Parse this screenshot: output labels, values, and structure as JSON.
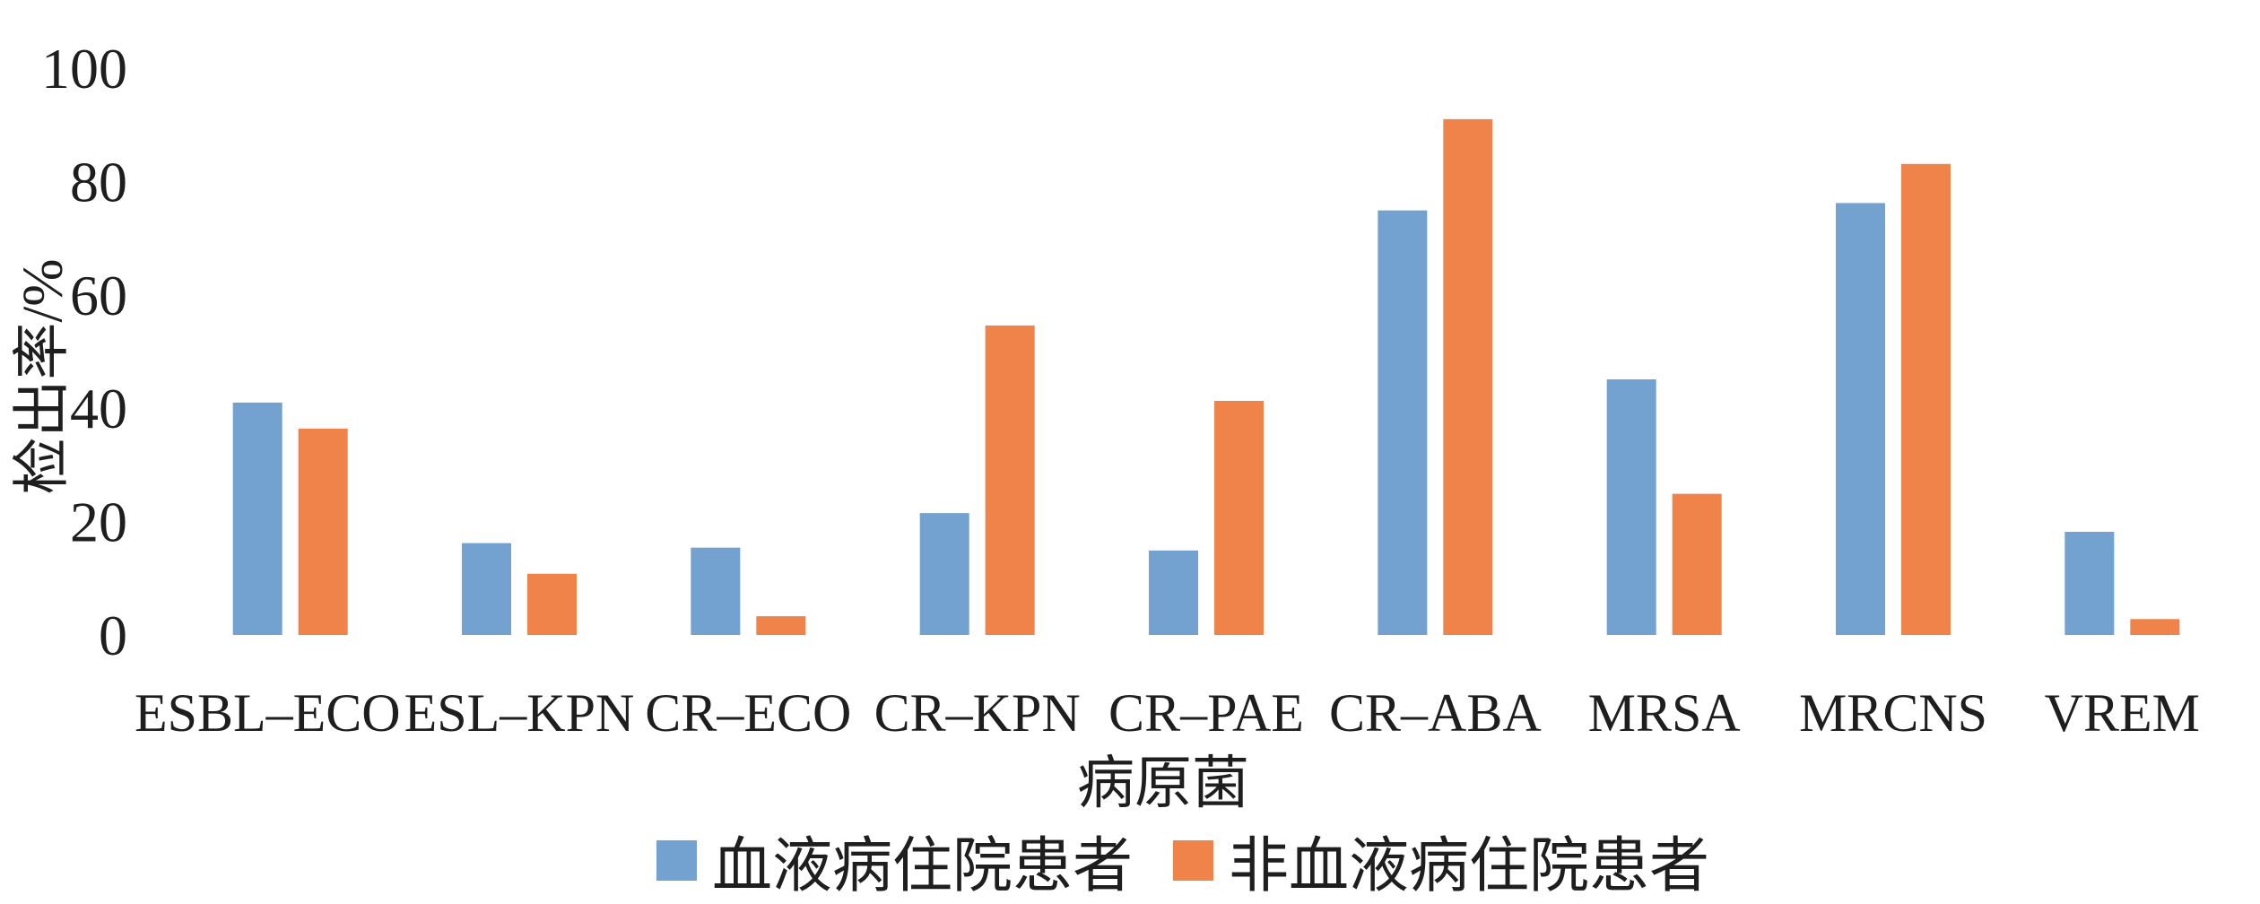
{
  "chart_data": {
    "type": "bar",
    "title": "",
    "categories": [
      "ESBL–ECO",
      "ESL–KPN",
      "CR–ECO",
      "CR–KPN",
      "CR–PAE",
      "CR–ABA",
      "MRSA",
      "MRCNS",
      "VREM"
    ],
    "series": [
      {
        "name": "血液病住院患者",
        "color": "#73A2D0",
        "values": [
          41.0,
          16.2,
          15.4,
          21.5,
          14.9,
          74.9,
          45.1,
          76.2,
          18.2
        ]
      },
      {
        "name": "非血液病住院患者",
        "color": "#EF8349",
        "values": [
          36.4,
          10.8,
          3.3,
          54.6,
          41.3,
          91.0,
          24.9,
          83.1,
          2.8
        ]
      }
    ],
    "xlabel": "病原菌",
    "ylabel": "检出率/%",
    "ylim": [
      0,
      100
    ],
    "yticks": [
      0,
      20,
      40,
      60,
      80,
      100
    ],
    "grid": false,
    "legend": "bottom"
  }
}
